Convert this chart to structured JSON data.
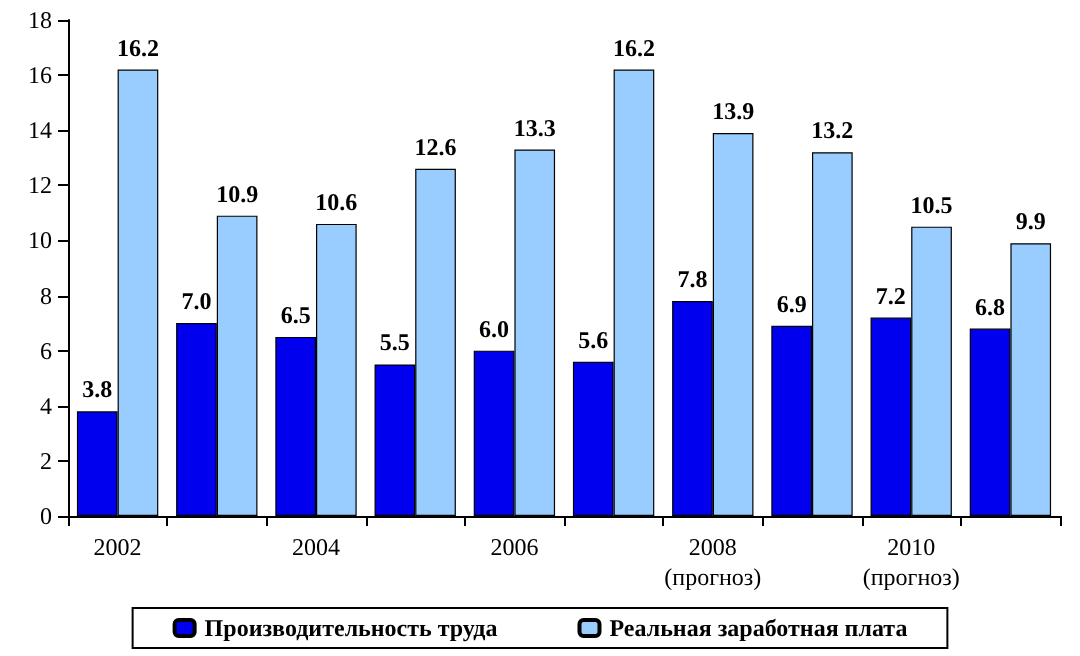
{
  "chart_data": {
    "type": "bar",
    "categories": [
      "2002",
      null,
      "2004",
      null,
      "2006",
      null,
      "2008\n(прогноз)",
      null,
      "2010\n(прогноз)",
      null
    ],
    "series": [
      {
        "name": "Производительность труда",
        "color": "#0000ee",
        "values": [
          3.8,
          7.0,
          6.5,
          5.5,
          6.0,
          5.6,
          7.8,
          6.9,
          7.2,
          6.8
        ],
        "value_labels": [
          "3.8",
          "7.0",
          "6.5",
          "5.5",
          "6.0",
          "5.6",
          "7.8",
          "6.9",
          "7.2",
          "6.8"
        ]
      },
      {
        "name": "Реальная заработная плата",
        "color": "#99ccff",
        "values": [
          16.2,
          10.9,
          10.6,
          12.6,
          13.3,
          16.2,
          13.9,
          13.2,
          10.5,
          9.9
        ],
        "value_labels": [
          "16.2",
          "10.9",
          "10.6",
          "12.6",
          "13.3",
          "16.2",
          "13.9",
          "13.2",
          "10.5",
          "9.9"
        ]
      }
    ],
    "ylim": [
      0,
      18
    ],
    "yticks": [
      0,
      2,
      4,
      6,
      8,
      10,
      12,
      14,
      16,
      18
    ],
    "grid": false,
    "legend": "bottom"
  }
}
